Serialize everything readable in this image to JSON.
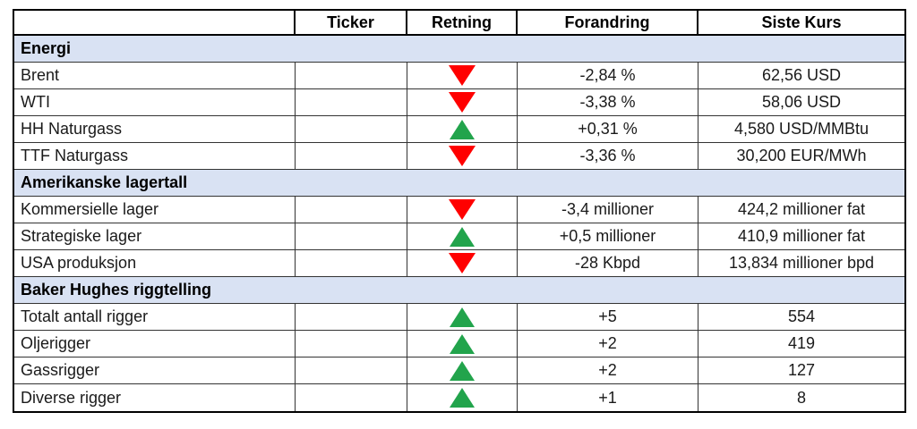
{
  "colors": {
    "up_green": "#22A44C",
    "down_red": "#FF0000",
    "section_bg": "#D9E2F3",
    "grid_line": "#333333",
    "outer_border": "#000000"
  },
  "header": {
    "columns": [
      "",
      "Ticker",
      "Retning",
      "Forandring",
      "Siste Kurs"
    ]
  },
  "sections": [
    {
      "title": "Energi",
      "rows": [
        {
          "name": "Brent",
          "ticker": "",
          "direction": "down",
          "change": "-2,84 %",
          "last": "62,56 USD"
        },
        {
          "name": "WTI",
          "ticker": "",
          "direction": "down",
          "change": "-3,38 %",
          "last": "58,06 USD"
        },
        {
          "name": "HH Naturgass",
          "ticker": "",
          "direction": "up",
          "change": "+0,31 %",
          "last": "4,580 USD/MMBtu"
        },
        {
          "name": "TTF Naturgass",
          "ticker": "",
          "direction": "down",
          "change": "-3,36 %",
          "last": "30,200 EUR/MWh"
        }
      ]
    },
    {
      "title": "Amerikanske lagertall",
      "rows": [
        {
          "name": "Kommersielle lager",
          "ticker": "",
          "direction": "down",
          "change": "-3,4 millioner",
          "last": "424,2 millioner fat"
        },
        {
          "name": "Strategiske lager",
          "ticker": "",
          "direction": "up",
          "change": "+0,5 millioner",
          "last": "410,9 millioner fat"
        },
        {
          "name": "USA produksjon",
          "ticker": "",
          "direction": "down",
          "change": "-28 Kbpd",
          "last": "13,834 millioner bpd"
        }
      ]
    },
    {
      "title": "Baker Hughes riggtelling",
      "rows": [
        {
          "name": "Totalt antall rigger",
          "ticker": "",
          "direction": "up",
          "change": "+5",
          "last": "554"
        },
        {
          "name": "Oljerigger",
          "ticker": "",
          "direction": "up",
          "change": "+2",
          "last": "419"
        },
        {
          "name": "Gassrigger",
          "ticker": "",
          "direction": "up",
          "change": "+2",
          "last": "127"
        },
        {
          "name": "Diverse rigger",
          "ticker": "",
          "direction": "up",
          "change": "+1",
          "last": "8"
        }
      ]
    }
  ]
}
